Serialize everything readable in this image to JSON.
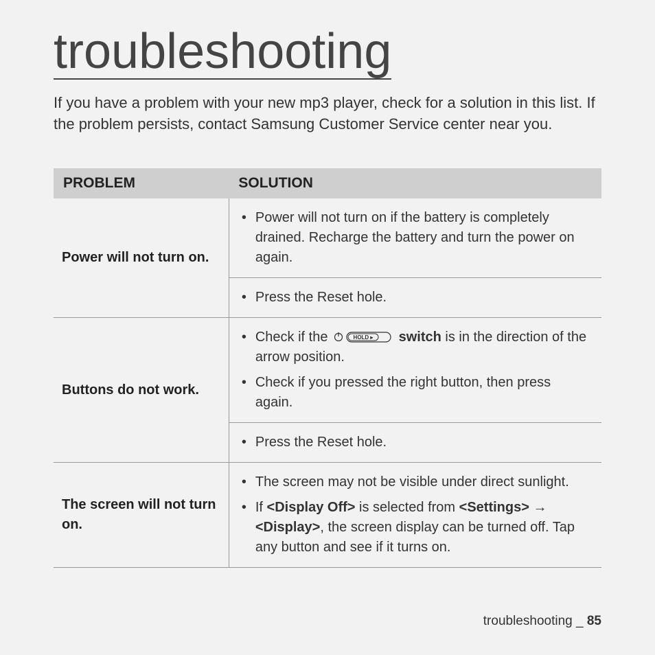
{
  "title": "troubleshooting",
  "intro": "If you have a problem with your new mp3 player, check for a solution in this list. If the problem persists, contact Samsung Customer Service center near you.",
  "table": {
    "headers": {
      "problem": "PROBLEM",
      "solution": "SOLUTION"
    },
    "rows": [
      {
        "problem": "Power will not turn on.",
        "solution_blocks": [
          {
            "items": [
              "Power will not turn on if the battery is completely drained. Recharge the battery and turn the power on again."
            ]
          },
          {
            "items": [
              "Press the Reset hole."
            ]
          }
        ]
      },
      {
        "problem": "Buttons do not work.",
        "solution_blocks": [
          {
            "items": [
              {
                "prefix": "Check if the ",
                "icon": "hold-switch",
                "bold_after_icon": "switch",
                "suffix": " is in the direction of the arrow position."
              },
              "Check if you pressed the right button, then press again."
            ]
          },
          {
            "items": [
              "Press the Reset hole."
            ]
          }
        ]
      },
      {
        "problem": "The screen will not turn on.",
        "solution_blocks": [
          {
            "items": [
              "The screen may not be visible under direct sunlight.",
              {
                "segments": [
                  {
                    "text": "If "
                  },
                  {
                    "text": "<Display Off>",
                    "bold": true
                  },
                  {
                    "text": " is selected from "
                  },
                  {
                    "text": "<Settings>",
                    "bold": true
                  },
                  {
                    "text": " → "
                  },
                  {
                    "text": "<Display>",
                    "bold": true
                  },
                  {
                    "text": ", the screen display can be turned off. Tap any button and see if it turns on."
                  }
                ]
              }
            ]
          }
        ]
      }
    ]
  },
  "footer": {
    "label": "troubleshooting",
    "separator": "_",
    "page": "85"
  },
  "colors": {
    "page_bg": "#f2f2f2",
    "header_bg": "#cfcfcf",
    "border": "#999999",
    "text": "#333333"
  },
  "typography": {
    "title_fontsize": 72,
    "intro_fontsize": 22,
    "table_header_fontsize": 21,
    "body_fontsize": 20,
    "footer_fontsize": 19
  }
}
